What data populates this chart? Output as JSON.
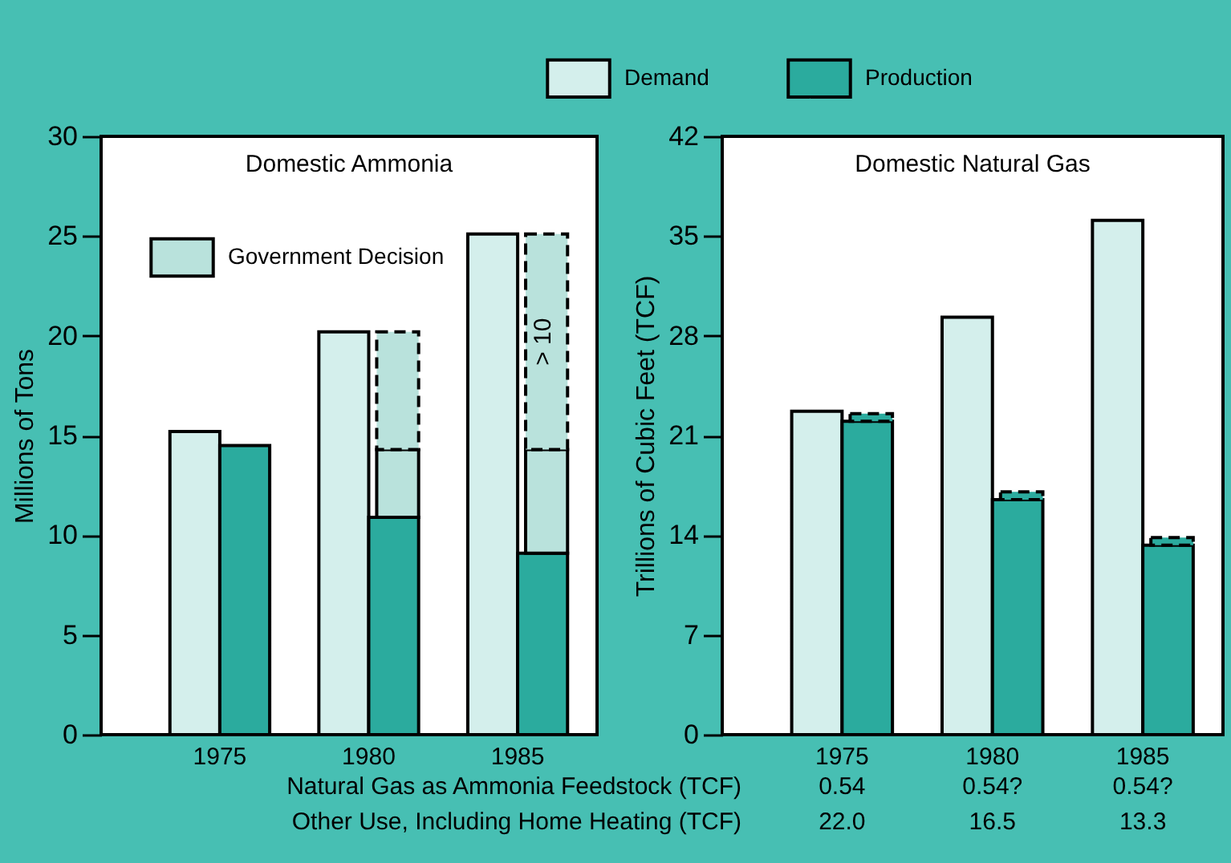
{
  "chart_data": [
    {
      "type": "bar",
      "title": "Domestic Ammonia",
      "ylabel": "Millions of Tons",
      "categories": [
        "1975",
        "1980",
        "1985"
      ],
      "ylim": [
        0,
        30
      ],
      "yticks": [
        0,
        5,
        10,
        15,
        20,
        25,
        30
      ],
      "legend": "top left",
      "annotations": [
        {
          "text": "> 10",
          "x": "1985",
          "y": 19.7
        }
      ],
      "series": [
        {
          "color": "#d4efec",
          "values": [
            15.2,
            20.2,
            25.1
          ]
        },
        {
          "color": "#2bab9e",
          "values": [
            14.5,
            10.9,
            9.1
          ]
        },
        {
          "name": "Government Decision",
          "color": "#b9e2dc",
          "base": [
            null,
            10.9,
            9.1
          ],
          "values": [
            null,
            3.4,
            5.2
          ]
        },
        {
          "color": "#b9e2dc",
          "base": [
            null,
            14.3,
            14.3
          ],
          "values": [
            null,
            5.9,
            10.8
          ],
          "line_style": "dashed"
        }
      ]
    },
    {
      "type": "bar",
      "title": "Domestic Natural Gas",
      "ylabel": "Trillions of Cubic Feet (TCF)",
      "categories": [
        "1975",
        "1980",
        "1985"
      ],
      "ylim": [
        0,
        42
      ],
      "yticks": [
        0,
        7,
        14,
        21,
        28,
        35,
        42
      ],
      "legend": "top",
      "annotations": [
        "Natural Gas as Ammonia Feedstock (TCF)",
        "Other Use, Including Home Heating (TCF)"
      ],
      "series": [
        {
          "name": "Demand",
          "color": "#d4efec",
          "values": [
            22.7,
            29.3,
            36.1
          ]
        },
        {
          "name": "Production",
          "color": "#2bab9e",
          "values": [
            22.0,
            16.5,
            13.3
          ],
          "value_labels": [
            "22.0",
            "16.5",
            "13.3"
          ]
        },
        {
          "color": "#2bab9e",
          "base": [
            22.0,
            16.5,
            13.3
          ],
          "values": [
            0.54,
            0.54,
            0.54
          ],
          "value_labels": [
            "0.54",
            "0.54?",
            "0.54?"
          ],
          "line_style": "dashed"
        }
      ]
    }
  ]
}
